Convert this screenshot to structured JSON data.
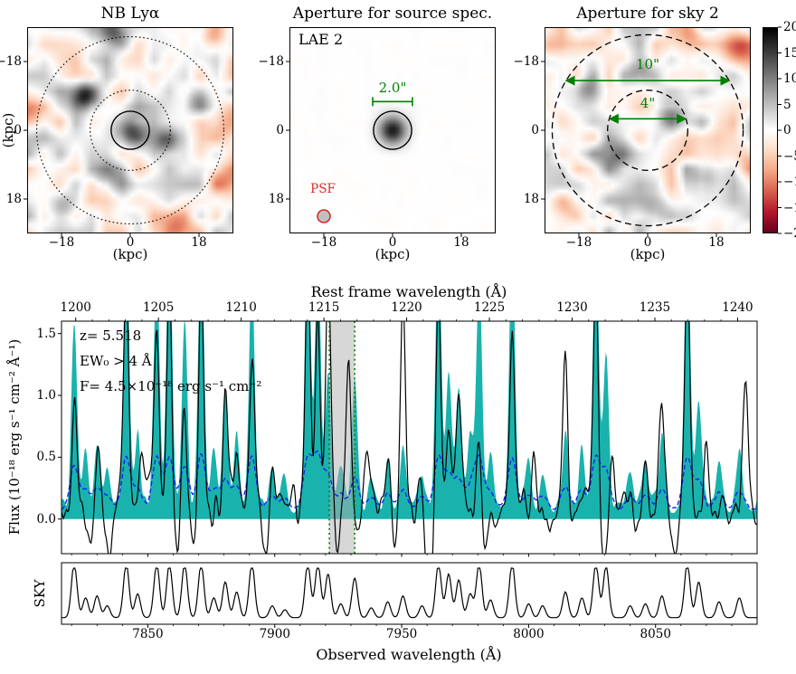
{
  "panels": {
    "nb": {
      "title": "NB Lyα",
      "xlabel": "(kpc)",
      "ylabel": "(kpc)",
      "xtick_labels": [
        "−18",
        "0",
        "18"
      ],
      "ytick_labels": [
        "18",
        "0",
        "−18"
      ],
      "tick_values": [
        -18,
        0,
        18
      ],
      "aperture_radii_kpc": {
        "solid_circle": 5,
        "dotted_inner_circle": 10.5,
        "dotted_outer_circle": 24.5
      },
      "noise_seed": 11,
      "noise_amp": 6.5,
      "blobs": [
        [
          0,
          0,
          17,
          3.2
        ],
        [
          -12,
          9,
          19,
          2.8
        ],
        [
          -4,
          26.5,
          15,
          3
        ],
        [
          9,
          -3,
          8,
          2.5
        ],
        [
          -6,
          -13,
          7,
          3
        ],
        [
          18,
          8,
          6,
          2.5
        ],
        [
          -18,
          -20,
          7,
          2.5
        ],
        [
          22,
          25,
          -9,
          3
        ],
        [
          27,
          2,
          -9,
          3.5
        ],
        [
          13,
          -26,
          -7,
          3
        ],
        [
          -27,
          5,
          -6,
          2.5
        ],
        [
          24,
          -13,
          -6,
          3
        ]
      ]
    },
    "source": {
      "title": "Aperture for source spec.",
      "object_label": "LAE 2",
      "aperture_label": "2.0\"",
      "psf_label": "PSF",
      "xlabel": "(kpc)",
      "xtick_labels": [
        "−18",
        "0",
        "18"
      ],
      "ytick_labels": [
        "18",
        "0",
        "−18"
      ],
      "tick_values": [
        -18,
        0,
        18
      ],
      "aperture_radius_kpc": 5,
      "noise_seed": 5,
      "noise_amp": 0.3,
      "blobs": [
        [
          0,
          0,
          18,
          2.6
        ]
      ]
    },
    "sky": {
      "title": "Aperture for sky 2",
      "outer_label": "10\"",
      "inner_label": "4\"",
      "xlabel": "(kpc)",
      "xtick_labels": [
        "−18",
        "0",
        "18"
      ],
      "ytick_labels": [
        "18",
        "0",
        "−18"
      ],
      "tick_values": [
        -18,
        0,
        18
      ],
      "aperture_radii_kpc": {
        "dashed_inner_circle": 10.5,
        "dashed_outer_circle": 25
      },
      "noise_seed": 77,
      "noise_amp": 6.5,
      "blobs": [
        [
          6,
          5,
          11,
          3
        ],
        [
          -9,
          -7,
          9,
          3.5
        ],
        [
          15,
          -13,
          9,
          3
        ],
        [
          -17,
          11,
          8,
          2.5
        ],
        [
          2,
          -22,
          8,
          3
        ],
        [
          -2,
          16,
          7,
          2.5
        ],
        [
          -24,
          -2,
          6,
          2.5
        ],
        [
          24,
          22,
          -9,
          3
        ],
        [
          -22,
          -20,
          -6,
          3
        ],
        [
          27,
          -7,
          -7,
          3
        ],
        [
          -27,
          22,
          -5,
          2.5
        ],
        [
          12,
          26,
          -6,
          2.5
        ]
      ]
    }
  },
  "colorbar": {
    "tick_labels": [
      "20",
      "15",
      "10",
      "5",
      "0",
      "−5",
      "−10",
      "−15",
      "−20"
    ],
    "vmin": -20,
    "vmax": 20
  },
  "chart_data": {
    "type": "line",
    "title": "",
    "top_xlabel": "Rest frame wavelength (Å)",
    "xlabel": "Observed wavelength (Å)",
    "ylabel": "Flux (10⁻¹⁸ erg s⁻¹ cm⁻² Å⁻¹)",
    "sky_panel_ylabel": "SKY",
    "xlim": [
      7816,
      8090
    ],
    "ylim": [
      -0.28,
      1.6
    ],
    "x_tick_labels": [
      "7850",
      "7900",
      "7950",
      "8000",
      "8050"
    ],
    "x_tick_values": [
      7850,
      7900,
      7950,
      8000,
      8050
    ],
    "rest_tick_labels": [
      "1200",
      "1205",
      "1210",
      "1215",
      "1220",
      "1225",
      "1230",
      "1235",
      "1240"
    ],
    "rest_tick_values": [
      1200,
      1205,
      1210,
      1215,
      1220,
      1225,
      1230,
      1235,
      1240
    ],
    "y_tick_labels": [
      "0.0",
      "0.5",
      "1.0",
      "1.5"
    ],
    "y_tick_values": [
      0,
      0.5,
      1,
      1.5
    ],
    "redshift": 5.518,
    "annotations": {
      "redshift_label": "z= 5.518",
      "ew_label": "EW₀ > 4 Å",
      "flux_label": "F= 4.5×10⁻¹⁸ erg s⁻¹ cm⁻²"
    },
    "lya_window_obs": [
      7921.5,
      7931.5
    ],
    "baselines": {
      "object": 0.1,
      "sky_fill": 0.1,
      "noise": 0.07
    },
    "sigmas": {
      "sky": 1.1,
      "object": 0.95,
      "dip": 1.3,
      "noise_bump": 1.7
    },
    "noise_seed": 3,
    "sky_lines_obs": [
      [
        7821,
        1.5
      ],
      [
        7825.5,
        0.5
      ],
      [
        7830,
        0.55
      ],
      [
        7834,
        0.3
      ],
      [
        7841.5,
        2.3
      ],
      [
        7846,
        0.6
      ],
      [
        7853.5,
        2.0
      ],
      [
        7858.5,
        2.3
      ],
      [
        7864.5,
        1.5
      ],
      [
        7871,
        2.3
      ],
      [
        7876,
        0.5
      ],
      [
        7880.5,
        0.9
      ],
      [
        7885,
        0.65
      ],
      [
        7891,
        1.9
      ],
      [
        7899,
        0.3
      ],
      [
        7904,
        0.2
      ],
      [
        7913,
        2.3
      ],
      [
        7917,
        2.1
      ],
      [
        7921,
        1.1
      ],
      [
        7926,
        0.35
      ],
      [
        7931.5,
        1.0
      ],
      [
        7938,
        0.25
      ],
      [
        7944.5,
        0.4
      ],
      [
        7950.5,
        0.55
      ],
      [
        7958,
        0.3
      ],
      [
        7964.5,
        2.3
      ],
      [
        7968.5,
        1.1
      ],
      [
        7972.5,
        0.95
      ],
      [
        7977,
        0.6
      ],
      [
        7980.5,
        1.9
      ],
      [
        7985,
        0.45
      ],
      [
        7993.5,
        2.1
      ],
      [
        8000,
        0.35
      ],
      [
        8005.5,
        0.3
      ],
      [
        8014.5,
        0.65
      ],
      [
        8021,
        0.5
      ],
      [
        8026.5,
        2.3
      ],
      [
        8030.5,
        1.3
      ],
      [
        8040,
        0.3
      ],
      [
        8046,
        0.35
      ],
      [
        8052.5,
        0.55
      ],
      [
        8062.5,
        2.3
      ],
      [
        8067,
        0.9
      ],
      [
        8075,
        0.4
      ],
      [
        8083,
        0.5
      ]
    ],
    "object_peaks_obs": [
      [
        7821,
        0.85
      ],
      [
        7830,
        0.5
      ],
      [
        7841.5,
        1.9
      ],
      [
        7848,
        0.45
      ],
      [
        7853.5,
        1.35
      ],
      [
        7858.5,
        2.0
      ],
      [
        7864.5,
        0.8
      ],
      [
        7871,
        1.95
      ],
      [
        7880.5,
        1.12
      ],
      [
        7885,
        0.55
      ],
      [
        7891,
        1.28
      ],
      [
        7899,
        0.3
      ],
      [
        7913,
        2.0
      ],
      [
        7917,
        1.5
      ],
      [
        7921,
        1.85
      ],
      [
        7929,
        1.3
      ],
      [
        7936,
        0.3
      ],
      [
        7944.5,
        0.5
      ],
      [
        7950.5,
        1.75
      ],
      [
        7957,
        0.3
      ],
      [
        7964.5,
        1.95
      ],
      [
        7968.5,
        0.7
      ],
      [
        7972.5,
        0.9
      ],
      [
        7980.5,
        0.55
      ],
      [
        7993.5,
        1.45
      ],
      [
        8002,
        0.35
      ],
      [
        8014.5,
        1.3
      ],
      [
        8026.5,
        1.95
      ],
      [
        8033,
        0.45
      ],
      [
        8046,
        0.4
      ],
      [
        8052.5,
        0.85
      ],
      [
        8062.5,
        1.95
      ],
      [
        8070,
        0.5
      ],
      [
        8077,
        0.3
      ],
      [
        8085.5,
        0.95
      ]
    ],
    "object_dips_obs": [
      [
        7827,
        -0.35
      ],
      [
        7835,
        -0.45
      ],
      [
        7861,
        -0.3
      ],
      [
        7868,
        -0.35
      ],
      [
        7896,
        -0.4
      ],
      [
        7924.5,
        -0.3
      ],
      [
        7947,
        -0.3
      ],
      [
        7961,
        -0.55
      ],
      [
        7983,
        -0.35
      ],
      [
        8008,
        -0.25
      ],
      [
        8029.5,
        -0.45
      ],
      [
        8043,
        -0.25
      ],
      [
        8057,
        -0.35
      ],
      [
        8077.5,
        -0.3
      ]
    ]
  },
  "colors": {
    "sky_fill": "#1ab2ad",
    "object_line": "#000000",
    "noise_line": "#1616ff",
    "annotation_green": "#008000",
    "psf_red": "#e02828",
    "band_gray": "#b0b0b0"
  }
}
